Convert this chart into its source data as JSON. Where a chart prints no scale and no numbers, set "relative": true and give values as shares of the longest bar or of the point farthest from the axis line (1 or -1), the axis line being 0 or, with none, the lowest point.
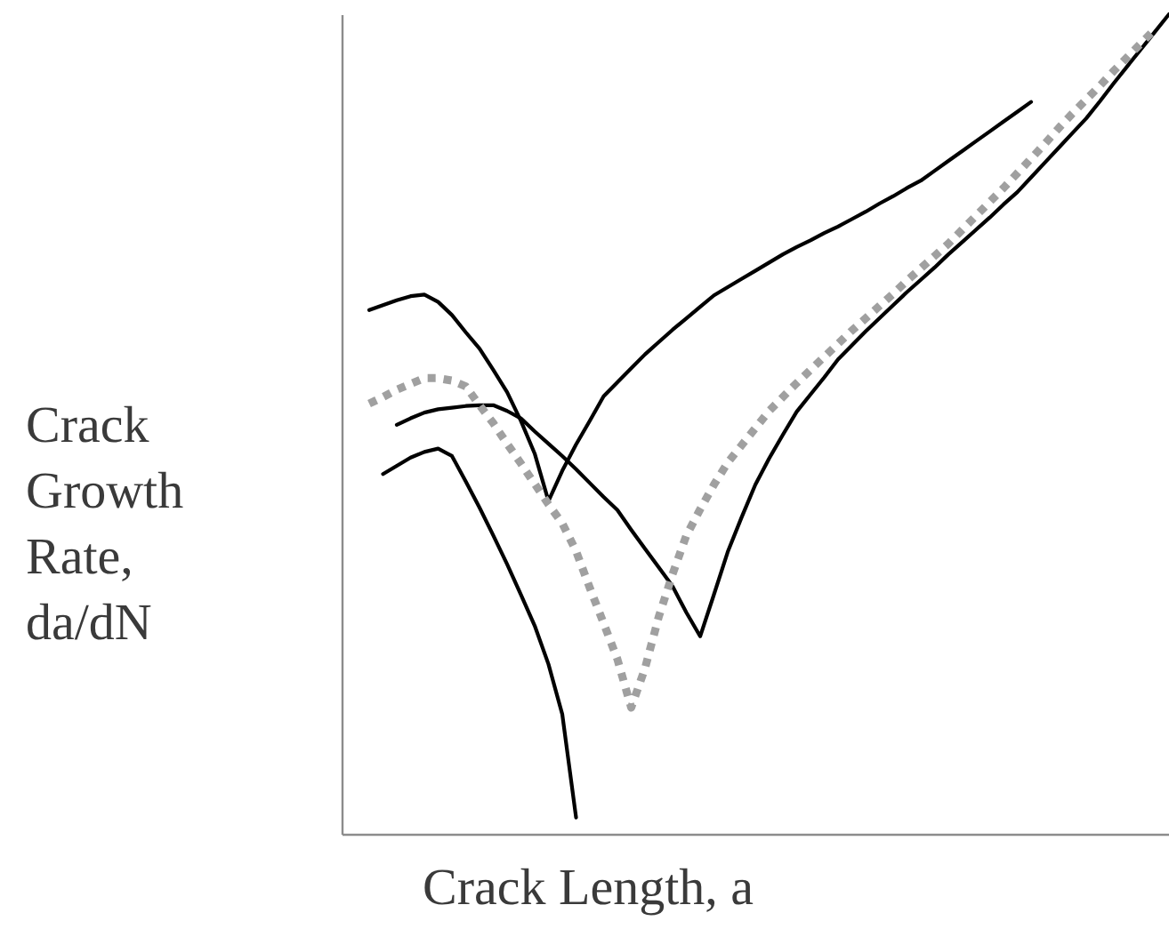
{
  "chart_data": {
    "type": "line",
    "relative": true,
    "xlabel": "Crack Length, a",
    "ylabel": "Crack Growth Rate, da/dN",
    "categories": [
      null,
      null,
      null,
      null,
      null,
      null,
      null,
      null,
      null,
      null,
      null,
      null,
      null,
      null,
      null,
      null,
      null,
      null,
      null,
      null,
      null,
      null,
      null,
      null,
      null,
      null,
      null,
      null,
      null,
      null,
      null,
      null,
      null,
      null,
      null,
      null,
      null,
      null,
      null,
      null,
      null,
      null,
      null,
      null,
      null,
      null,
      null,
      null,
      null,
      null,
      null,
      null,
      null,
      null,
      null,
      null,
      null,
      null,
      null,
      null,
      null
    ],
    "series": [
      {
        "color": "#000000",
        "line_style": "solid",
        "values": [
          null,
          null,
          0.639,
          0.645,
          0.651,
          0.656,
          0.658,
          0.649,
          0.633,
          0.612,
          0.592,
          0.566,
          0.539,
          0.504,
          0.464,
          0.406,
          0.443,
          0.475,
          0.504,
          0.534,
          0.551,
          0.568,
          0.585,
          0.6,
          0.615,
          0.629,
          0.643,
          0.657,
          0.667,
          0.677,
          0.687,
          0.697,
          0.707,
          0.716,
          0.724,
          0.733,
          0.741,
          0.75,
          0.759,
          0.769,
          0.778,
          0.788,
          0.797,
          0.809,
          0.821,
          0.833,
          0.845,
          0.857,
          0.869,
          0.881,
          0.893,
          null,
          null,
          null,
          null,
          null,
          null,
          null,
          null,
          null,
          null
        ]
      },
      {
        "color": "#000000",
        "line_style": "solid",
        "values": [
          null,
          null,
          null,
          null,
          0.499,
          0.507,
          0.514,
          0.518,
          0.52,
          0.522,
          0.523,
          0.523,
          0.516,
          0.507,
          0.491,
          0.476,
          0.461,
          0.445,
          0.428,
          0.411,
          0.395,
          0.371,
          0.348,
          0.325,
          0.302,
          0.27,
          0.241,
          0.292,
          0.344,
          0.386,
          0.426,
          0.458,
          0.487,
          0.515,
          0.536,
          0.557,
          0.579,
          0.596,
          0.613,
          0.629,
          0.645,
          0.661,
          0.676,
          0.691,
          0.707,
          0.722,
          0.737,
          0.752,
          0.768,
          0.783,
          0.801,
          0.819,
          0.837,
          0.855,
          0.873,
          0.894,
          0.916,
          0.937,
          0.958,
          0.979,
          1.0
        ]
      },
      {
        "color": "#000000",
        "line_style": "solid",
        "values": [
          null,
          null,
          null,
          0.439,
          0.449,
          0.459,
          0.466,
          0.47,
          0.461,
          0.43,
          0.398,
          0.364,
          0.329,
          0.292,
          0.254,
          0.207,
          0.146,
          0.02,
          null,
          null,
          null,
          null,
          null,
          null,
          null,
          null,
          null,
          null,
          null,
          null,
          null,
          null,
          null,
          null,
          null,
          null,
          null,
          null,
          null,
          null,
          null,
          null,
          null,
          null,
          null,
          null,
          null,
          null,
          null,
          null,
          null,
          null,
          null,
          null,
          null,
          null,
          null,
          null,
          null,
          null,
          null
        ]
      },
      {
        "color": "#a0a0a0",
        "line_style": "dotted",
        "values": [
          null,
          null,
          0.525,
          0.533,
          0.542,
          0.549,
          0.556,
          0.556,
          0.553,
          0.546,
          0.523,
          0.501,
          0.476,
          0.452,
          0.427,
          0.402,
          0.379,
          0.345,
          0.3,
          0.257,
          0.213,
          0.154,
          0.202,
          0.265,
          0.317,
          0.364,
          0.396,
          0.426,
          0.453,
          0.474,
          0.495,
          0.516,
          0.533,
          0.55,
          0.566,
          0.582,
          0.598,
          0.614,
          0.629,
          0.644,
          0.659,
          0.675,
          0.69,
          0.705,
          0.72,
          0.737,
          0.754,
          0.771,
          0.788,
          0.806,
          0.824,
          0.842,
          0.861,
          0.879,
          0.896,
          0.913,
          0.931,
          0.948,
          0.965,
          0.982,
          null
        ]
      }
    ]
  }
}
